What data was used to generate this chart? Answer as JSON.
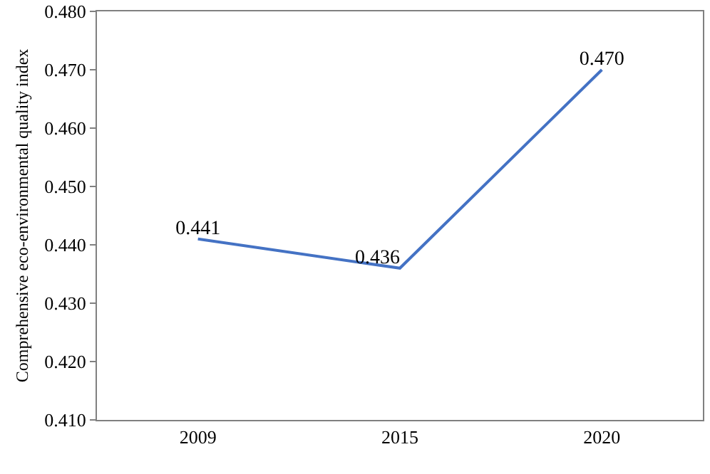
{
  "chart_data": {
    "type": "line",
    "ylabel": "Comprehensive eco-environmental quality index",
    "categories": [
      "2009",
      "2015",
      "2020"
    ],
    "series": [
      {
        "color": "#4472c4",
        "values": [
          0.441,
          0.436,
          0.47
        ],
        "value_labels": [
          "0.441",
          "0.436",
          "0.470"
        ]
      }
    ],
    "ylim": [
      0.41,
      0.48
    ],
    "yticks": [
      {
        "value": 0.41,
        "label": "0.410"
      },
      {
        "value": 0.42,
        "label": "0.420"
      },
      {
        "value": 0.43,
        "label": "0.430"
      },
      {
        "value": 0.44,
        "label": "0.440"
      },
      {
        "value": 0.45,
        "label": "0.450"
      },
      {
        "value": 0.46,
        "label": "0.460"
      },
      {
        "value": 0.47,
        "label": "0.470"
      },
      {
        "value": 0.48,
        "label": "0.480"
      }
    ],
    "grid": false,
    "marker": "none",
    "line_style": "solid"
  }
}
